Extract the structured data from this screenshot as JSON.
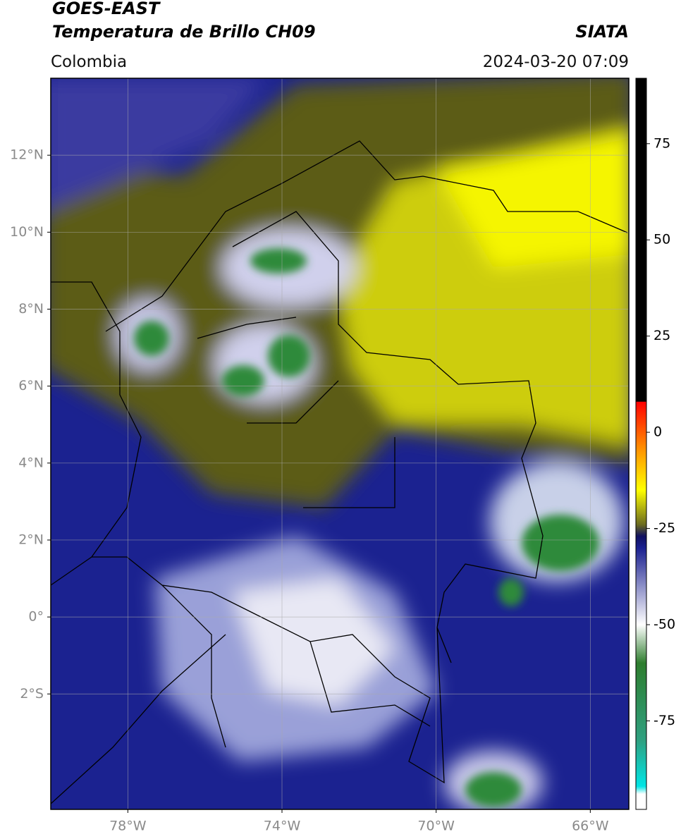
{
  "header": {
    "satellite": "GOES-EAST",
    "product": "Temperatura de Brillo CH09",
    "region": "Colombia",
    "source": "SIATA",
    "datetime": "2024-03-20 07:09"
  },
  "map": {
    "lonlim": [
      -80,
      -65
    ],
    "latlim": [
      -5,
      14
    ],
    "lon_ticks": [
      {
        "value": -78,
        "label": "78°W"
      },
      {
        "value": -74,
        "label": "74°W"
      },
      {
        "value": -70,
        "label": "70°W"
      },
      {
        "value": -66,
        "label": "66°W"
      }
    ],
    "lat_ticks": [
      {
        "value": 12,
        "label": "12°N"
      },
      {
        "value": 10,
        "label": "10°N"
      },
      {
        "value": 8,
        "label": "8°N"
      },
      {
        "value": 6,
        "label": "6°N"
      },
      {
        "value": 4,
        "label": "4°N"
      },
      {
        "value": 2,
        "label": "2°N"
      },
      {
        "value": 0,
        "label": "0°"
      },
      {
        "value": -2,
        "label": "2°S"
      }
    ]
  },
  "colorbar": {
    "lim": [
      -98,
      92
    ],
    "ticks": [
      75,
      50,
      25,
      0,
      -25,
      -50,
      -75
    ],
    "colormap": [
      [
        92,
        "#000000"
      ],
      [
        8,
        "#000000"
      ],
      [
        7.9,
        "#ff0000"
      ],
      [
        -5,
        "#ff9900"
      ],
      [
        -15,
        "#ffff00"
      ],
      [
        -24,
        "#6b6b20"
      ],
      [
        -27,
        "#101060"
      ],
      [
        -30,
        "#1a2090"
      ],
      [
        -50,
        "#ffffff"
      ],
      [
        -60,
        "#2e7d2e"
      ],
      [
        -80,
        "#2fa080"
      ],
      [
        -92,
        "#00e5e5"
      ],
      [
        -94,
        "#ffffff"
      ],
      [
        -98,
        "#ffffff"
      ]
    ]
  }
}
